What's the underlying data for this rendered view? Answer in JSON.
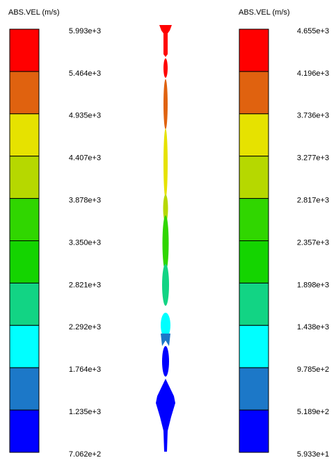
{
  "legends": [
    {
      "title": "ABS.VEL (m/s)",
      "labels": [
        "5.993e+3",
        "5.464e+3",
        "4.935e+3",
        "4.407e+3",
        "3.878e+3",
        "3.350e+3",
        "2.821e+3",
        "2.292e+3",
        "1.764e+3",
        "1.235e+3",
        "7.062e+2"
      ],
      "colors": [
        "#ff0000",
        "#e0620f",
        "#e6e200",
        "#b6d800",
        "#30d600",
        "#14d400",
        "#12d484",
        "#00ffff",
        "#1c78c8",
        "#0000ff"
      ]
    },
    {
      "title": "ABS.VEL (m/s)",
      "labels": [
        "4.655e+3",
        "4.196e+3",
        "3.736e+3",
        "3.277e+3",
        "2.817e+3",
        "2.357e+3",
        "1.898e+3",
        "1.438e+3",
        "9.785e+2",
        "5.189e+2",
        "5.933e+1"
      ],
      "colors": [
        "#ff0000",
        "#e0620f",
        "#e6e200",
        "#b6d800",
        "#30d600",
        "#14d400",
        "#12d484",
        "#00ffff",
        "#1c78c8",
        "#0000ff"
      ]
    }
  ]
}
